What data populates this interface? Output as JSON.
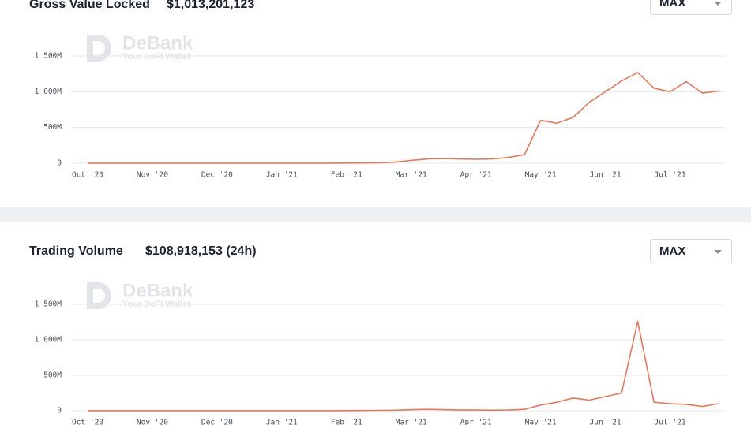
{
  "chart_data": [
    {
      "type": "line",
      "title": "Gross Value Locked",
      "subtitle": "$1,013,201,123",
      "range": "MAX",
      "watermark": "DeBank",
      "watermark_tagline": "Your DeFi Wallet",
      "color": "#e8775a",
      "categories": [
        "Oct '20",
        null,
        null,
        null,
        "Nov '20",
        null,
        null,
        null,
        "Dec '20",
        null,
        null,
        null,
        "Jan '21",
        null,
        null,
        null,
        "Feb '21",
        null,
        null,
        null,
        "Mar '21",
        null,
        null,
        null,
        "Apr '21",
        null,
        null,
        null,
        "May '21",
        null,
        null,
        null,
        "Jun '21",
        null,
        null,
        null,
        "Jul '21",
        null,
        null,
        null
      ],
      "values": [
        1,
        1,
        1,
        1,
        1,
        1,
        1,
        1,
        1,
        1,
        1,
        1,
        1,
        1,
        1,
        1,
        2,
        3,
        5,
        15,
        40,
        60,
        65,
        60,
        55,
        60,
        80,
        120,
        600,
        560,
        640,
        850,
        1000,
        1150,
        1270,
        1050,
        1000,
        1140,
        980,
        1010
      ],
      "ylim": [
        0,
        1500
      ],
      "yticks": [
        0,
        {
          "value": 500,
          "label": "500M"
        },
        {
          "value": 1000,
          "label": "1 000M"
        },
        {
          "value": 1500,
          "label": "1 500M"
        }
      ],
      "grid": true
    },
    {
      "type": "line",
      "title": "Trading Volume",
      "subtitle": "$108,918,153 (24h)",
      "range": "MAX",
      "watermark": "DeBank",
      "watermark_tagline": "Your DeFi Wallet",
      "color": "#e8775a",
      "categories": [
        "Oct '20",
        null,
        null,
        null,
        "Nov '20",
        null,
        null,
        null,
        "Dec '20",
        null,
        null,
        null,
        "Jan '21",
        null,
        null,
        null,
        "Feb '21",
        null,
        null,
        null,
        "Mar '21",
        null,
        null,
        null,
        "Apr '21",
        null,
        null,
        null,
        "May '21",
        null,
        null,
        null,
        "Jun '21",
        null,
        null,
        null,
        "Jul '21",
        null,
        null,
        null
      ],
      "values": [
        1,
        1,
        1,
        1,
        1,
        1,
        1,
        1,
        1,
        1,
        1,
        1,
        1,
        1,
        1,
        1,
        2,
        3,
        5,
        8,
        15,
        20,
        15,
        10,
        10,
        8,
        10,
        20,
        80,
        120,
        180,
        150,
        200,
        250,
        1260,
        120,
        100,
        90,
        60,
        100
      ],
      "ylim": [
        0,
        1500
      ],
      "yticks": [
        0,
        {
          "value": 500,
          "label": "500M"
        },
        {
          "value": 1000,
          "label": "1 000M"
        },
        {
          "value": 1500,
          "label": "1 500M"
        }
      ],
      "grid": true
    }
  ]
}
